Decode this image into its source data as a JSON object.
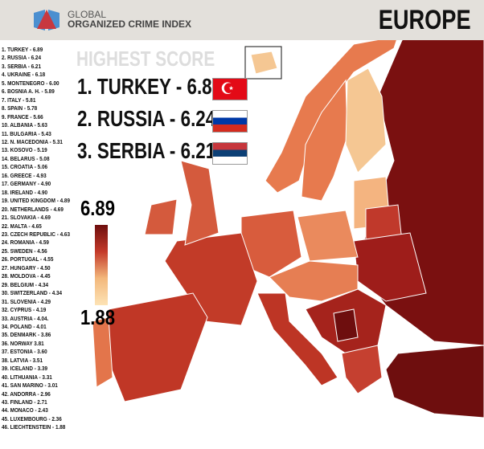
{
  "header": {
    "logo_line1": "GLOBAL",
    "logo_line2": "ORGANIZED CRIME INDEX",
    "region": "EUROPE"
  },
  "highest": {
    "title": "HIGHEST SCORE",
    "items": [
      "1. TURKEY - 6.89",
      "2. RUSSIA - 6.24",
      "3. SERBIA - 6.21"
    ],
    "flags": [
      "turkey-flag",
      "russia-flag",
      "serbia-flag"
    ]
  },
  "legend": {
    "max": "6.89",
    "min": "1.88",
    "color_max": "#6e0e0e",
    "color_min": "#fde3b5"
  },
  "ranking": [
    "1. TURKEY - 6.89",
    "2. RUSSIA - 6.24",
    "3. SERBIA - 6.21",
    "4. UKRAINE - 6.18",
    "5. MONTENEGRO - 6.00",
    "6. BOSNIA A. H. - 5.89",
    "7. ITALY - 5.81",
    "8. SPAIN - 5.78",
    "9. FRANCE - 5.66",
    "10. ALBANIA - 5.63",
    "11. BULGARIA - 5.43",
    "12. N. MACEDONIA - 5.31",
    "13. KOSOVO - 5.19",
    "14. BELARUS - 5.08",
    "15. CROATIA - 5.06",
    "16. GREECE - 4.93",
    "17. GERMANY - 4.90",
    "18. IRELAND - 4.90",
    "19. UNITED KINGDOM - 4.89",
    "20. NETHERLANDS - 4.69",
    "21. SLOVAKIA - 4.69",
    "22. MALTA - 4.65",
    "23. CZECH REPUBLIC - 4.63",
    "24. ROMANIA - 4.59",
    "25. SWEDEN - 4.56",
    "26. PORTUGAL - 4.55",
    "27. HUNGARY - 4.50",
    "28. MOLDOVA - 4.45",
    "29. BELGIUM - 4.34",
    "30. SWITZERLAND - 4.34",
    "31. SLOVENIA - 4.29",
    "32. CYPRUS - 4.19",
    "33. AUSTRIA - 4.04.",
    "34. POLAND - 4.01",
    "35. DENMARK - 3.86",
    "36. NORWAY 3.81",
    "37. ESTONIA - 3.60",
    "38. LATVIA - 3.51",
    "39. ICELAND - 3.39",
    "40. LITHUANIA - 3.31",
    "41. SAN MARINO - 3.01",
    "42. ANDORRA - 2.96",
    "43. FINLAND - 2.71",
    "44. MONACO - 2.43",
    "45. LUXEMBOURG - 2.36",
    "46. LIECHTENSTEIN - 1.88"
  ]
}
